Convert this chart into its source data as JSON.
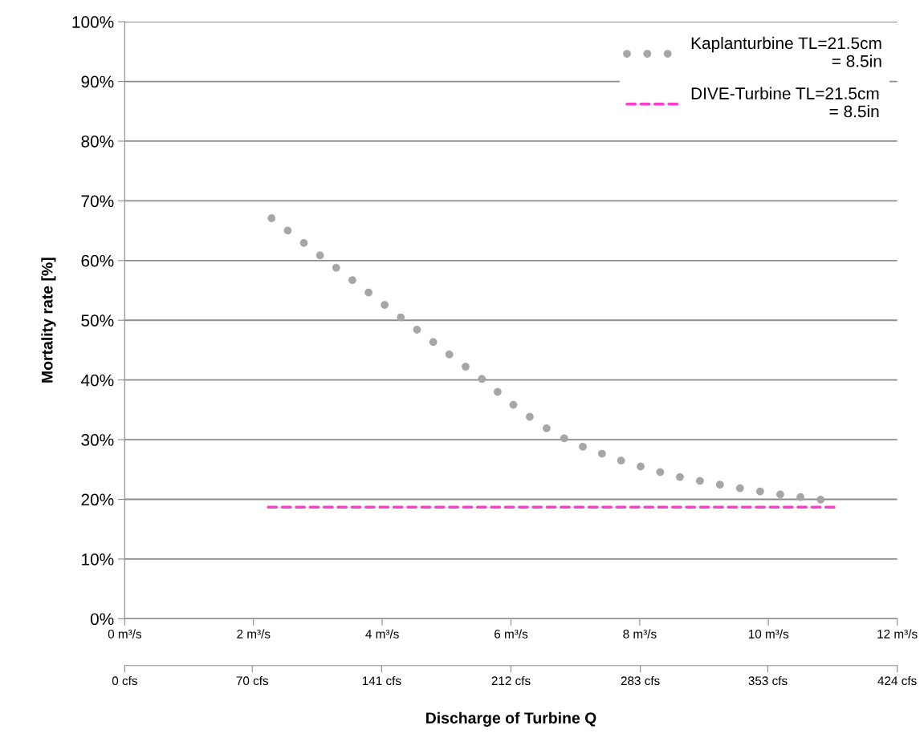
{
  "chart_data": {
    "type": "line",
    "xlabel": "Discharge of Turbine Q",
    "ylabel": "Mortality rate [%]",
    "xlim": [
      0,
      12
    ],
    "xticks": [
      {
        "value": 0,
        "label": "0 m³/s"
      },
      {
        "value": 2,
        "label": "2 m³/s"
      },
      {
        "value": 4,
        "label": "4 m³/s"
      },
      {
        "value": 6,
        "label": "6 m³/s"
      },
      {
        "value": 8,
        "label": "8 m³/s"
      },
      {
        "value": 10,
        "label": "10 m³/s"
      },
      {
        "value": 12,
        "label": "12 m³/s"
      }
    ],
    "x2lim": [
      0,
      424
    ],
    "x2ticks": [
      {
        "value": 0,
        "label": "0 cfs"
      },
      {
        "value": 70,
        "label": "70 cfs"
      },
      {
        "value": 141,
        "label": "141 cfs"
      },
      {
        "value": 212,
        "label": "212 cfs"
      },
      {
        "value": 283,
        "label": "283 cfs"
      },
      {
        "value": 353,
        "label": "353 cfs"
      },
      {
        "value": 424,
        "label": "424 cfs"
      }
    ],
    "ylim": [
      0,
      100
    ],
    "yticks": [
      {
        "value": 0,
        "label": "0%"
      },
      {
        "value": 10,
        "label": "10%"
      },
      {
        "value": 20,
        "label": "20%"
      },
      {
        "value": 30,
        "label": "30%"
      },
      {
        "value": 40,
        "label": "40%"
      },
      {
        "value": 50,
        "label": "50%"
      },
      {
        "value": 60,
        "label": "60%"
      },
      {
        "value": 70,
        "label": "70%"
      },
      {
        "value": 80,
        "label": "80%"
      },
      {
        "value": 90,
        "label": "90%"
      },
      {
        "value": 100,
        "label": "100%"
      }
    ],
    "grid": "y",
    "legend": "top right",
    "series": [
      {
        "name": "Kaplanturbine TL=21.5cm\n= 8.5in",
        "color": "#a6a6a6",
        "line_style": "dotted",
        "x": [
          2.28,
          3.2,
          4.3,
          5.21,
          5.58,
          6.12,
          6.69,
          7.12,
          7.76,
          8.5,
          9.37,
          10.06,
          10.99
        ],
        "values": [
          67.1,
          59.5,
          50.4,
          42.9,
          39.9,
          35.1,
          30.9,
          28.8,
          26.3,
          24.0,
          22.2,
          21.0,
          19.7
        ]
      },
      {
        "name": "DIVE-Turbine TL=21.5cm\n= 8.5in",
        "color": "#ff3ccd",
        "line_style": "dashed",
        "x": [
          2.23,
          11.02
        ],
        "values": [
          18.7,
          18.7
        ]
      }
    ]
  }
}
